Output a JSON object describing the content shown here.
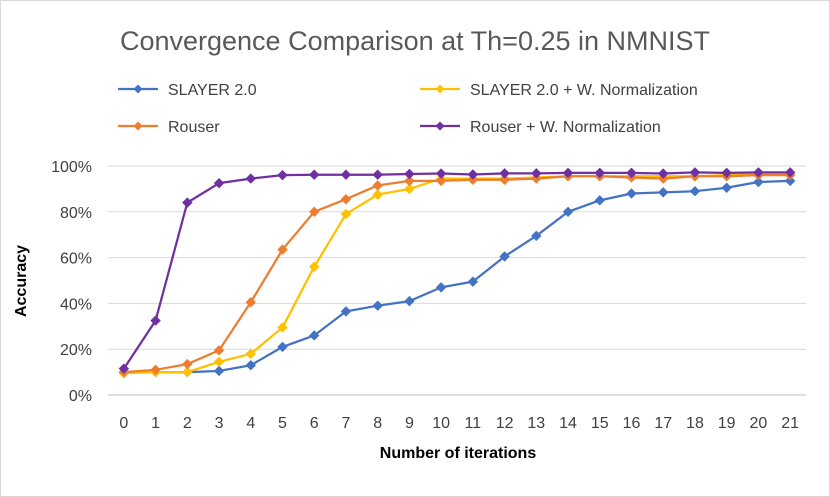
{
  "chart_data": {
    "type": "line",
    "title": "Convergence Comparison at Th=0.25 in NMNIST",
    "xlabel": "Number of iterations",
    "ylabel": "Accuracy",
    "x": [
      0,
      1,
      2,
      3,
      4,
      5,
      6,
      7,
      8,
      9,
      10,
      11,
      12,
      13,
      14,
      15,
      16,
      17,
      18,
      19,
      20,
      21
    ],
    "ylim": [
      0,
      1
    ],
    "yticks": [
      "0%",
      "20%",
      "40%",
      "60%",
      "80%",
      "100%"
    ],
    "ytick_values": [
      0,
      0.2,
      0.4,
      0.6,
      0.8,
      1.0
    ],
    "grid": true,
    "legend_position": "top",
    "series": [
      {
        "name": "SLAYER 2.0",
        "color": "#4472C4",
        "values": [
          0.1,
          0.1,
          0.1,
          0.105,
          0.13,
          0.21,
          0.26,
          0.365,
          0.39,
          0.41,
          0.47,
          0.495,
          0.605,
          0.695,
          0.8,
          0.85,
          0.88,
          0.885,
          0.89,
          0.905,
          0.93,
          0.935
        ]
      },
      {
        "name": "SLAYER 2.0 + W. Normalization",
        "color": "#FFC000",
        "values": [
          0.095,
          0.1,
          0.1,
          0.145,
          0.18,
          0.295,
          0.56,
          0.79,
          0.875,
          0.9,
          0.945,
          0.945,
          0.945,
          0.95,
          0.955,
          0.955,
          0.955,
          0.955,
          0.955,
          0.96,
          0.965,
          0.965
        ]
      },
      {
        "name": "Rouser",
        "color": "#ED7D31",
        "values": [
          0.1,
          0.11,
          0.135,
          0.195,
          0.405,
          0.635,
          0.8,
          0.855,
          0.915,
          0.935,
          0.935,
          0.94,
          0.94,
          0.945,
          0.955,
          0.955,
          0.95,
          0.945,
          0.955,
          0.955,
          0.96,
          0.96
        ]
      },
      {
        "name": "Rouser + W. Normalization",
        "color": "#7030A0",
        "values": [
          0.115,
          0.325,
          0.84,
          0.925,
          0.945,
          0.96,
          0.962,
          0.962,
          0.962,
          0.965,
          0.967,
          0.963,
          0.968,
          0.968,
          0.97,
          0.97,
          0.97,
          0.967,
          0.972,
          0.97,
          0.972,
          0.972
        ]
      }
    ]
  }
}
